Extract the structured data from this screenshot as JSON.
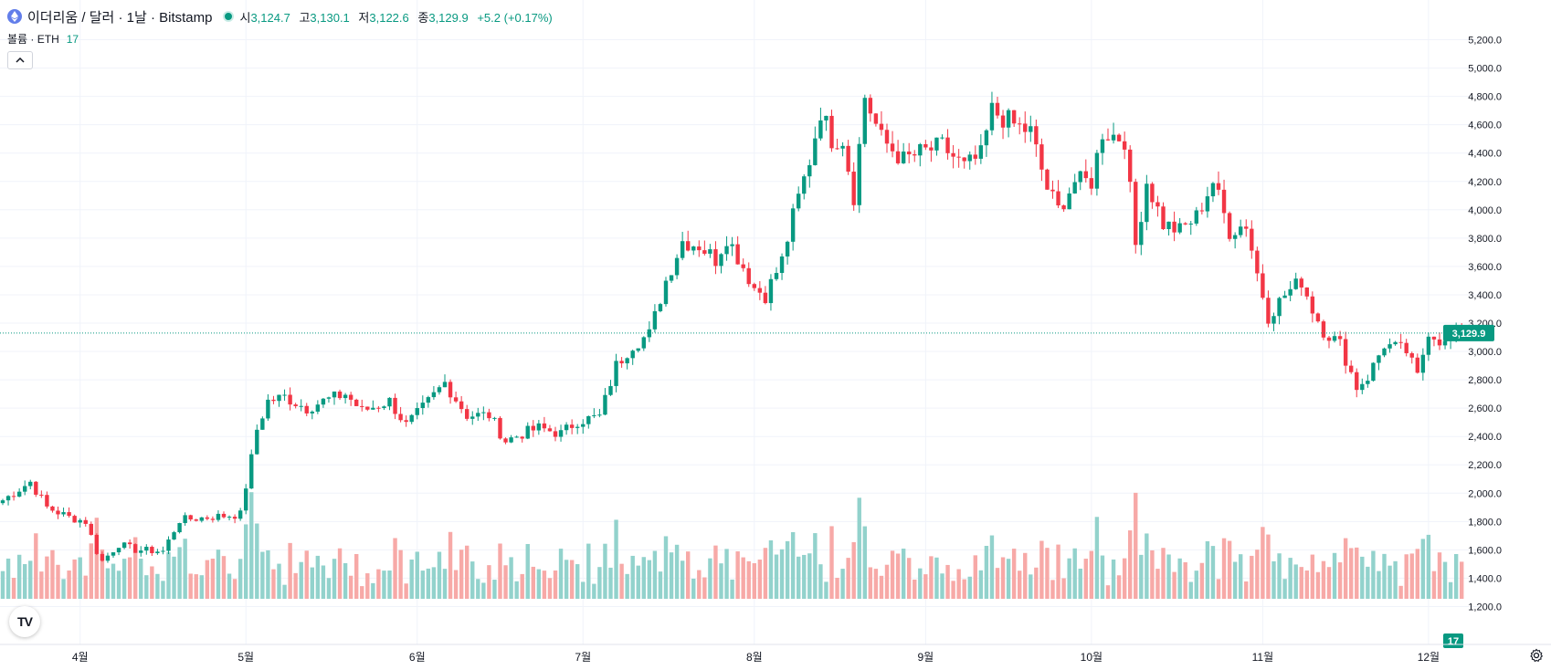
{
  "header": {
    "symbol": "이더리움 / 달러 · 1날 · Bitstamp",
    "open_label": "시",
    "open": "3,124.7",
    "high_label": "고",
    "high": "3,130.1",
    "low_label": "저",
    "low": "3,122.6",
    "close_label": "종",
    "close": "3,129.9",
    "change": "+5.2 (+0.17%)"
  },
  "volume_legend": {
    "label": "볼륨 · ETH",
    "value": "17"
  },
  "watermark": "TV",
  "colors": {
    "up": "#089981",
    "down": "#f23645",
    "vol_up": "#92d2cc",
    "vol_down": "#f7a9a7",
    "grid": "#f0f3fa",
    "axis_text": "#131722"
  },
  "chart_data": {
    "type": "candlestick",
    "title": "이더리움 / 달러 · 1날 · Bitstamp",
    "price_axis": {
      "ylim": [
        1100,
        5300
      ],
      "ticks": [
        1200,
        1400,
        1600,
        1800,
        2000,
        2200,
        2400,
        2600,
        2800,
        3000,
        3200,
        3400,
        3600,
        3800,
        4000,
        4200,
        4400,
        4600,
        4800,
        5000,
        5200
      ]
    },
    "price_tick_labels": [
      "1,200.0",
      "1,400.0",
      "1,600.0",
      "1,800.0",
      "2,000.0",
      "2,200.0",
      "2,400.0",
      "2,600.0",
      "2,800.0",
      "3,000.0",
      "3,200.0",
      "3,400.0",
      "3,600.0",
      "3,800.0",
      "4,000.0",
      "4,200.0",
      "4,400.0",
      "4,600.0",
      "4,800.0",
      "5,000.0",
      "5,200.0"
    ],
    "last_price": 3129.9,
    "last_price_label": "3,129.9",
    "volume_last_label": "17",
    "x_labels": [
      {
        "label": "4월",
        "index": 14
      },
      {
        "label": "5월",
        "index": 44
      },
      {
        "label": "6월",
        "index": 75
      },
      {
        "label": "7월",
        "index": 105
      },
      {
        "label": "8월",
        "index": 136
      },
      {
        "label": "9월",
        "index": 167
      },
      {
        "label": "10월",
        "index": 197
      },
      {
        "label": "11월",
        "index": 228
      },
      {
        "label": "12월",
        "index": 258
      }
    ],
    "anchors": [
      [
        0,
        1950
      ],
      [
        5,
        2080
      ],
      [
        8,
        1900
      ],
      [
        12,
        1830
      ],
      [
        15,
        1800
      ],
      [
        17,
        1590
      ],
      [
        18,
        1520
      ],
      [
        21,
        1640
      ],
      [
        24,
        1600
      ],
      [
        29,
        1590
      ],
      [
        32,
        1810
      ],
      [
        37,
        1830
      ],
      [
        43,
        1850
      ],
      [
        46,
        2450
      ],
      [
        48,
        2650
      ],
      [
        51,
        2680
      ],
      [
        55,
        2600
      ],
      [
        58,
        2650
      ],
      [
        62,
        2700
      ],
      [
        65,
        2580
      ],
      [
        70,
        2650
      ],
      [
        73,
        2480
      ],
      [
        76,
        2600
      ],
      [
        80,
        2780
      ],
      [
        84,
        2550
      ],
      [
        88,
        2550
      ],
      [
        91,
        2370
      ],
      [
        94,
        2420
      ],
      [
        97,
        2460
      ],
      [
        101,
        2420
      ],
      [
        104,
        2510
      ],
      [
        108,
        2540
      ],
      [
        111,
        2900
      ],
      [
        114,
        3050
      ],
      [
        117,
        3120
      ],
      [
        120,
        3500
      ],
      [
        123,
        3780
      ],
      [
        126,
        3750
      ],
      [
        129,
        3650
      ],
      [
        131,
        3810
      ],
      [
        134,
        3600
      ],
      [
        136,
        3450
      ],
      [
        138,
        3400
      ],
      [
        141,
        3640
      ],
      [
        143,
        3950
      ],
      [
        146,
        4350
      ],
      [
        148,
        4700
      ],
      [
        150,
        4500
      ],
      [
        152,
        4500
      ],
      [
        154,
        4100
      ],
      [
        156,
        4800
      ],
      [
        159,
        4500
      ],
      [
        163,
        4350
      ],
      [
        166,
        4400
      ],
      [
        170,
        4450
      ],
      [
        174,
        4300
      ],
      [
        177,
        4380
      ],
      [
        179,
        4700
      ],
      [
        183,
        4600
      ],
      [
        186,
        4550
      ],
      [
        189,
        4150
      ],
      [
        191,
        4000
      ],
      [
        194,
        4200
      ],
      [
        197,
        4200
      ],
      [
        199,
        4550
      ],
      [
        203,
        4500
      ],
      [
        205,
        3750
      ],
      [
        207,
        4200
      ],
      [
        210,
        3900
      ],
      [
        213,
        3850
      ],
      [
        216,
        3950
      ],
      [
        219,
        4200
      ],
      [
        222,
        3850
      ],
      [
        225,
        3900
      ],
      [
        227,
        3550
      ],
      [
        229,
        3250
      ],
      [
        232,
        3400
      ],
      [
        235,
        3500
      ],
      [
        237,
        3300
      ],
      [
        239,
        3150
      ],
      [
        242,
        3050
      ],
      [
        245,
        2750
      ],
      [
        247,
        2820
      ],
      [
        250,
        3050
      ],
      [
        254,
        3000
      ],
      [
        256,
        2820
      ],
      [
        258,
        3150
      ],
      [
        261,
        3050
      ],
      [
        264,
        3130
      ]
    ],
    "volume_axis_max": 2200,
    "ohlc_header": {
      "open": 3124.7,
      "high": 3130.1,
      "low": 3122.6,
      "close": 3129.9,
      "change": 5.2,
      "change_pct": 0.17
    }
  }
}
